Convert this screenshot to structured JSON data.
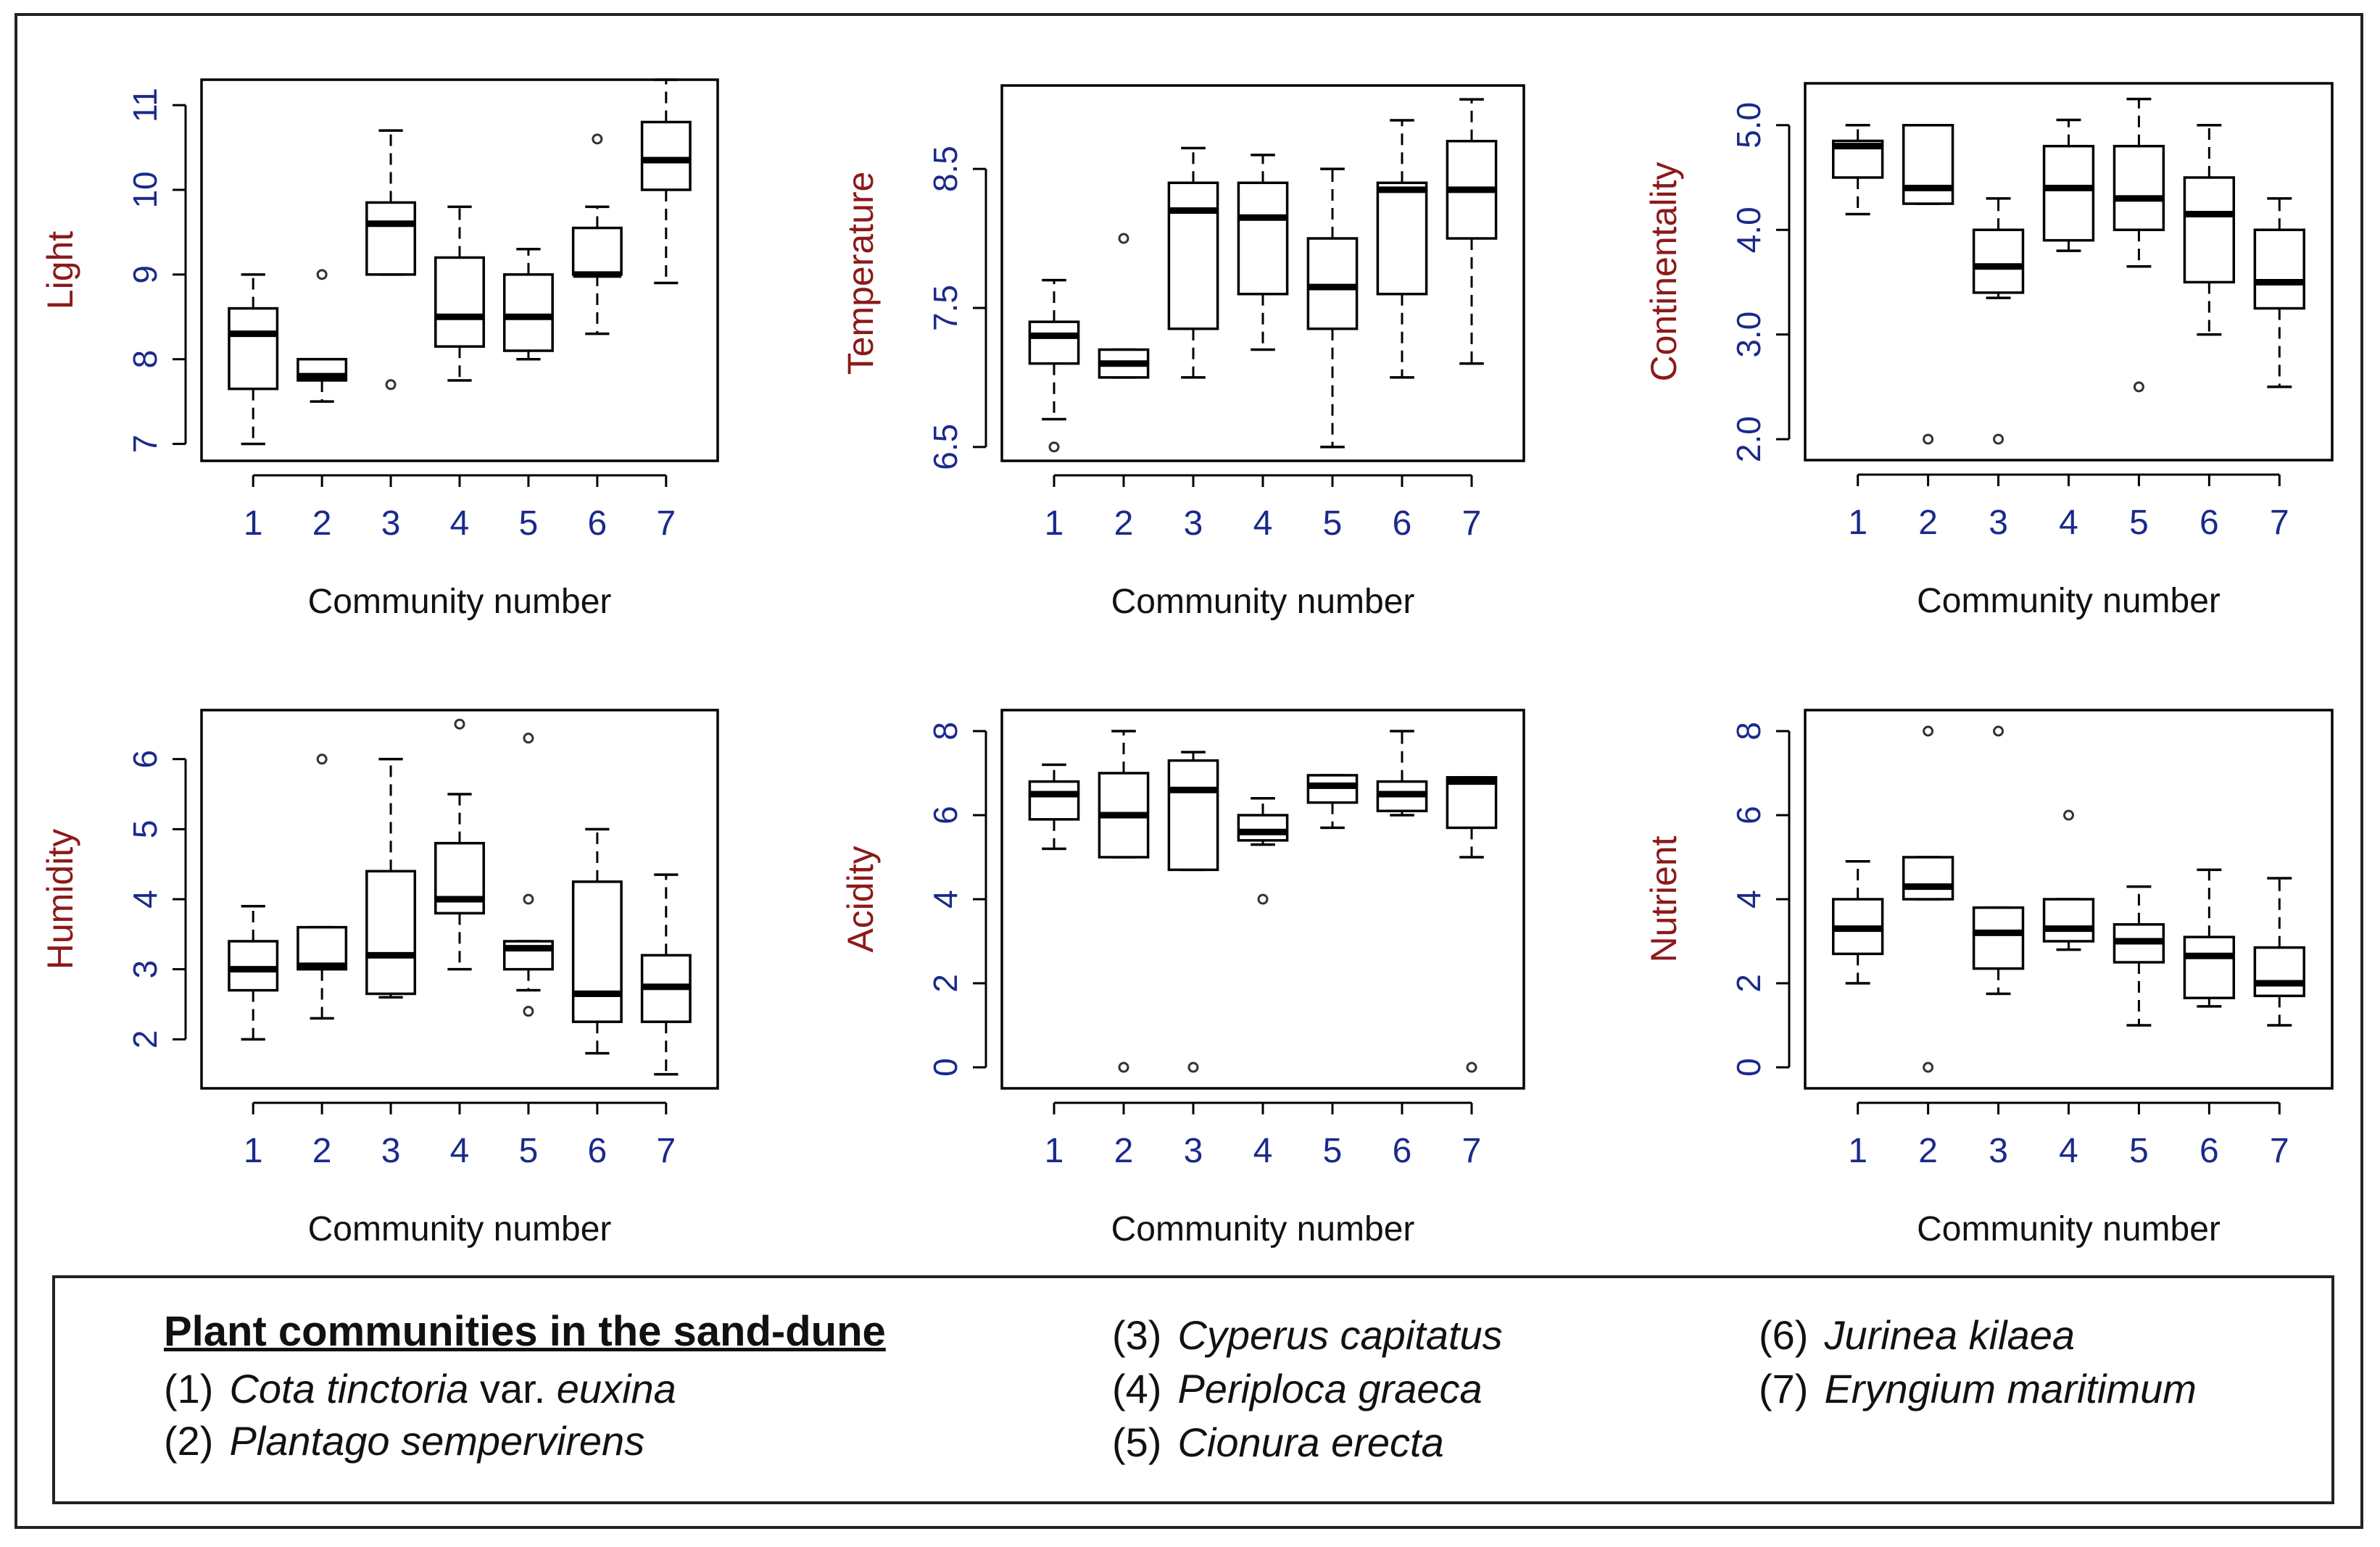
{
  "chart_data": [
    {
      "type": "boxplot",
      "ylabel": "Light",
      "xlabel": "Community number",
      "categories": [
        "1",
        "2",
        "3",
        "4",
        "5",
        "6",
        "7"
      ],
      "ylim": [
        6.8,
        11.3
      ],
      "yticks": [
        "7",
        "8",
        "9",
        "10",
        "11"
      ],
      "boxes": [
        {
          "min": 7.0,
          "q1": 7.65,
          "median": 8.3,
          "q3": 8.6,
          "max": 9.0,
          "outliers": []
        },
        {
          "min": 7.5,
          "q1": 7.75,
          "median": 7.8,
          "q3": 8.0,
          "max": 8.0,
          "outliers": [
            9.0
          ]
        },
        {
          "min": 9.0,
          "q1": 9.0,
          "median": 9.6,
          "q3": 9.85,
          "max": 10.7,
          "outliers": [
            7.7
          ]
        },
        {
          "min": 7.75,
          "q1": 8.15,
          "median": 8.5,
          "q3": 9.2,
          "max": 9.8,
          "outliers": []
        },
        {
          "min": 8.0,
          "q1": 8.1,
          "median": 8.5,
          "q3": 9.0,
          "max": 9.3,
          "outliers": []
        },
        {
          "min": 8.3,
          "q1": 9.0,
          "median": 9.0,
          "q3": 9.55,
          "max": 9.8,
          "outliers": [
            10.6
          ]
        },
        {
          "min": 8.9,
          "q1": 10.0,
          "median": 10.35,
          "q3": 10.8,
          "max": 11.3,
          "outliers": []
        }
      ]
    },
    {
      "type": "boxplot",
      "ylabel": "Temperature",
      "xlabel": "Community number",
      "categories": [
        "1",
        "2",
        "3",
        "4",
        "5",
        "6",
        "7"
      ],
      "ylim": [
        6.4,
        9.1
      ],
      "yticks": [
        "6.5",
        "7.5",
        "8.5"
      ],
      "boxes": [
        {
          "min": 6.7,
          "q1": 7.1,
          "median": 7.3,
          "q3": 7.4,
          "max": 7.7,
          "outliers": [
            6.5
          ]
        },
        {
          "min": 7.0,
          "q1": 7.0,
          "median": 7.1,
          "q3": 7.2,
          "max": 7.2,
          "outliers": [
            8.0
          ]
        },
        {
          "min": 7.0,
          "q1": 7.35,
          "median": 8.2,
          "q3": 8.4,
          "max": 8.65,
          "outliers": []
        },
        {
          "min": 7.2,
          "q1": 7.6,
          "median": 8.15,
          "q3": 8.4,
          "max": 8.6,
          "outliers": []
        },
        {
          "min": 6.5,
          "q1": 7.35,
          "median": 7.65,
          "q3": 8.0,
          "max": 8.5,
          "outliers": []
        },
        {
          "min": 7.0,
          "q1": 7.6,
          "median": 8.35,
          "q3": 8.4,
          "max": 8.85,
          "outliers": []
        },
        {
          "min": 7.1,
          "q1": 8.0,
          "median": 8.35,
          "q3": 8.7,
          "max": 9.0,
          "outliers": []
        }
      ]
    },
    {
      "type": "boxplot",
      "ylabel": "Continentality",
      "xlabel": "Community number",
      "categories": [
        "1",
        "2",
        "3",
        "4",
        "5",
        "6",
        "7"
      ],
      "ylim": [
        1.8,
        5.4
      ],
      "yticks": [
        "2.0",
        "3.0",
        "4.0",
        "5.0"
      ],
      "boxes": [
        {
          "min": 4.15,
          "q1": 4.5,
          "median": 4.8,
          "q3": 4.85,
          "max": 5.0,
          "outliers": []
        },
        {
          "min": 4.25,
          "q1": 4.25,
          "median": 4.4,
          "q3": 5.0,
          "max": 5.0,
          "outliers": [
            2.0
          ]
        },
        {
          "min": 3.35,
          "q1": 3.4,
          "median": 3.65,
          "q3": 4.0,
          "max": 4.3,
          "outliers": [
            2.0
          ]
        },
        {
          "min": 3.8,
          "q1": 3.9,
          "median": 4.4,
          "q3": 4.8,
          "max": 5.05,
          "outliers": []
        },
        {
          "min": 3.65,
          "q1": 4.0,
          "median": 4.3,
          "q3": 4.8,
          "max": 5.25,
          "outliers": [
            2.5
          ]
        },
        {
          "min": 3.0,
          "q1": 3.5,
          "median": 4.15,
          "q3": 4.5,
          "max": 5.0,
          "outliers": []
        },
        {
          "min": 2.5,
          "q1": 3.25,
          "median": 3.5,
          "q3": 4.0,
          "max": 4.3,
          "outliers": []
        }
      ]
    },
    {
      "type": "boxplot",
      "ylabel": "Humidity",
      "xlabel": "Community number",
      "categories": [
        "1",
        "2",
        "3",
        "4",
        "5",
        "6",
        "7"
      ],
      "ylim": [
        1.3,
        6.7
      ],
      "yticks": [
        "2",
        "3",
        "4",
        "5",
        "6"
      ],
      "boxes": [
        {
          "min": 2.0,
          "q1": 2.7,
          "median": 3.0,
          "q3": 3.4,
          "max": 3.9,
          "outliers": []
        },
        {
          "min": 2.3,
          "q1": 3.0,
          "median": 3.05,
          "q3": 3.6,
          "max": 3.6,
          "outliers": [
            6.0
          ]
        },
        {
          "min": 2.6,
          "q1": 2.65,
          "median": 3.2,
          "q3": 4.4,
          "max": 6.0,
          "outliers": []
        },
        {
          "min": 3.0,
          "q1": 3.8,
          "median": 4.0,
          "q3": 4.8,
          "max": 5.5,
          "outliers": [
            6.5
          ]
        },
        {
          "min": 2.7,
          "q1": 3.0,
          "median": 3.3,
          "q3": 3.4,
          "max": 3.4,
          "outliers": [
            6.3,
            4.0,
            2.4
          ]
        },
        {
          "min": 1.8,
          "q1": 2.25,
          "median": 2.65,
          "q3": 4.25,
          "max": 5.0,
          "outliers": []
        },
        {
          "min": 1.5,
          "q1": 2.25,
          "median": 2.75,
          "q3": 3.2,
          "max": 4.35,
          "outliers": []
        }
      ]
    },
    {
      "type": "boxplot",
      "ylabel": "Acidity",
      "xlabel": "Community number",
      "categories": [
        "1",
        "2",
        "3",
        "4",
        "5",
        "6",
        "7"
      ],
      "ylim": [
        -0.5,
        8.5
      ],
      "yticks": [
        "0",
        "2",
        "4",
        "6",
        "8"
      ],
      "boxes": [
        {
          "min": 5.2,
          "q1": 5.9,
          "median": 6.5,
          "q3": 6.8,
          "max": 7.2,
          "outliers": []
        },
        {
          "min": 5.0,
          "q1": 5.0,
          "median": 6.0,
          "q3": 7.0,
          "max": 8.0,
          "outliers": [
            0
          ]
        },
        {
          "min": 4.7,
          "q1": 4.7,
          "median": 6.6,
          "q3": 7.3,
          "max": 7.5,
          "outliers": [
            0
          ]
        },
        {
          "min": 5.3,
          "q1": 5.4,
          "median": 5.6,
          "q3": 6.0,
          "max": 6.4,
          "outliers": [
            4.0
          ]
        },
        {
          "min": 5.7,
          "q1": 6.3,
          "median": 6.7,
          "q3": 6.95,
          "max": 6.95,
          "outliers": []
        },
        {
          "min": 6.0,
          "q1": 6.1,
          "median": 6.5,
          "q3": 6.8,
          "max": 8.0,
          "outliers": []
        },
        {
          "min": 5.0,
          "q1": 5.7,
          "median": 6.8,
          "q3": 6.9,
          "max": 6.9,
          "outliers": [
            0
          ]
        }
      ]
    },
    {
      "type": "boxplot",
      "ylabel": "Nutrient",
      "xlabel": "Community number",
      "categories": [
        "1",
        "2",
        "3",
        "4",
        "5",
        "6",
        "7"
      ],
      "ylim": [
        -0.5,
        8.5
      ],
      "yticks": [
        "0",
        "2",
        "4",
        "6",
        "8"
      ],
      "boxes": [
        {
          "min": 2.0,
          "q1": 2.7,
          "median": 3.3,
          "q3": 4.0,
          "max": 4.9,
          "outliers": []
        },
        {
          "min": 4.0,
          "q1": 4.0,
          "median": 4.3,
          "q3": 5.0,
          "max": 5.0,
          "outliers": [
            8.0,
            0
          ]
        },
        {
          "min": 1.75,
          "q1": 2.35,
          "median": 3.2,
          "q3": 3.8,
          "max": 3.8,
          "outliers": [
            8.0
          ]
        },
        {
          "min": 2.8,
          "q1": 3.0,
          "median": 3.3,
          "q3": 4.0,
          "max": 4.0,
          "outliers": [
            6.0
          ]
        },
        {
          "min": 1.0,
          "q1": 2.5,
          "median": 3.0,
          "q3": 3.4,
          "max": 4.3,
          "outliers": []
        },
        {
          "min": 1.45,
          "q1": 1.65,
          "median": 2.65,
          "q3": 3.1,
          "max": 4.7,
          "outliers": []
        },
        {
          "min": 1.0,
          "q1": 1.7,
          "median": 2.0,
          "q3": 2.85,
          "max": 4.5,
          "outliers": []
        }
      ]
    }
  ],
  "legend": {
    "title": "Plant communities in the sand-dune",
    "items": [
      {
        "num": "(1)",
        "name": "Cota tinctoria",
        "suffix": " var. ",
        "suffix_italic": "euxina"
      },
      {
        "num": "(2)",
        "name": "Plantago sempervirens"
      },
      {
        "num": "(3)",
        "name": "Cyperus capitatus"
      },
      {
        "num": "(4)",
        "name": "Periploca graeca"
      },
      {
        "num": "(5)",
        "name": "Cionura erecta"
      },
      {
        "num": "(6)",
        "name": "Jurinea kilaea"
      },
      {
        "num": "(7)",
        "name": "Eryngium maritimum"
      }
    ]
  },
  "colors": {
    "axis_label": "#8b1a1a",
    "tick_label": "#1a2a8b",
    "line": "#000000"
  }
}
